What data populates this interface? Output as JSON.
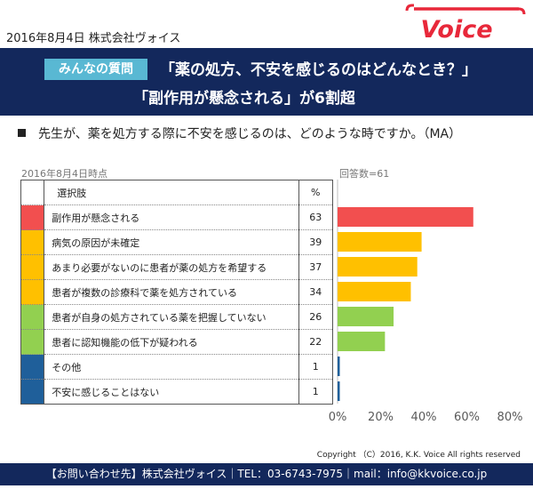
{
  "header": {
    "date_company": "2016年8月4日 株式会社ヴォイス",
    "logo_text": "Voice"
  },
  "banner": {
    "badge": "みんなの質問",
    "headline_line1": "「薬の処方、不安を感じるのはどんなとき？」",
    "headline_line2": "「副作用が懸念される」が6割超"
  },
  "question": "先生が、薬を処方する際に不安を感じるのは、どのような時ですか。（MA）",
  "as_of": "2016年8月4日時点",
  "respondents": "回答数=61",
  "table_headers": {
    "option": "選択肢",
    "percent": "%"
  },
  "chart_data": {
    "type": "bar",
    "orientation": "horizontal",
    "categories": [
      "副作用が懸念される",
      "病気の原因が未確定",
      "あまり必要がないのに患者が薬の処方を希望する",
      "患者が複数の診療科で薬を処方されている",
      "患者が自身の処方されている薬を把握していない",
      "患者に認知機能の低下が疑われる",
      "その他",
      "不安に感じることはない"
    ],
    "values": [
      63,
      39,
      37,
      34,
      26,
      22,
      1,
      1
    ],
    "value_labels": [
      "63",
      "39",
      "37",
      "34",
      "26",
      "22",
      "1",
      "1"
    ],
    "bar_colors": [
      "#f24f4f",
      "#ffc000",
      "#ffc000",
      "#ffc000",
      "#92d050",
      "#92d050",
      "#1f5f9a",
      "#1f5f9a"
    ],
    "xlim": [
      0,
      80
    ],
    "xticks": [
      0,
      20,
      40,
      60,
      80
    ],
    "xtick_labels": [
      "0%",
      "20%",
      "40%",
      "60%",
      "80%"
    ]
  },
  "copyright": "Copyright （C）2016, K.K. Voice All rights reserved",
  "footer": "【お問い合わせ先】株式会社ヴォイス｜TEL：03-6743-7975｜mail：info@kkvoice.co.jp"
}
